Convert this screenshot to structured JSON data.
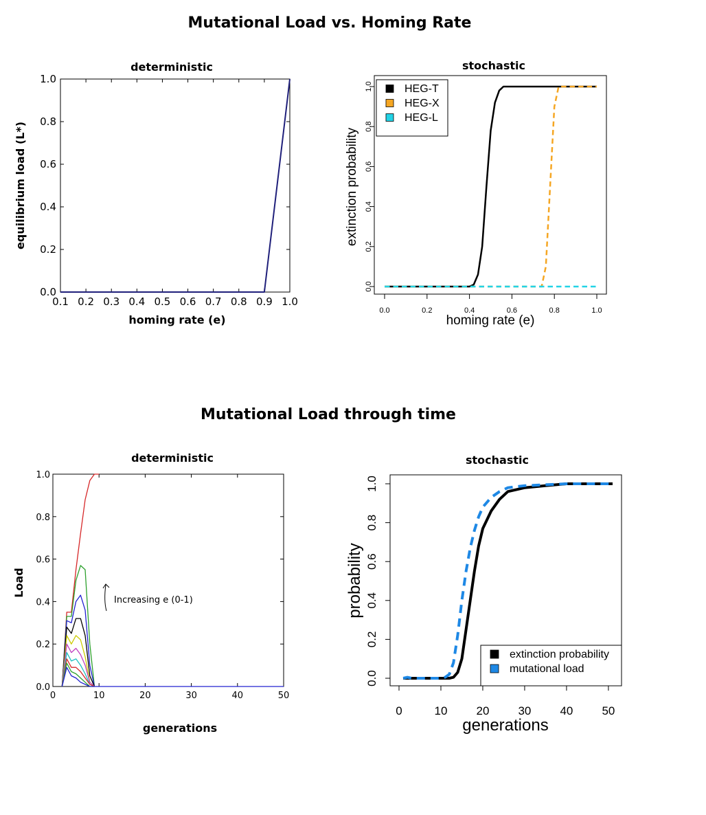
{
  "titles": {
    "top": "Mutational Load vs. Homing Rate",
    "bottom": "Mutational Load through time"
  },
  "chart_data": [
    {
      "id": "det-homing",
      "type": "line",
      "title": "deterministic",
      "xlabel": "homing rate (e)",
      "ylabel": "equilibrium load (L*)",
      "xlim": [
        0.1,
        1.0
      ],
      "ylim": [
        0.0,
        1.0
      ],
      "xticks": [
        "0.1",
        "0.2",
        "0.3",
        "0.4",
        "0.5",
        "0.6",
        "0.7",
        "0.8",
        "0.9",
        "1.0"
      ],
      "yticks": [
        "0.0",
        "0.2",
        "0.4",
        "0.6",
        "0.8",
        "1.0"
      ],
      "series": [
        {
          "color": "#1f1f7a",
          "x": [
            0.1,
            0.9,
            1.0
          ],
          "y": [
            0.0,
            0.0,
            1.0
          ]
        }
      ]
    },
    {
      "id": "sto-homing",
      "type": "line",
      "title": "stochastic",
      "xlabel": "homing rate (e)",
      "ylabel": "extinction probability",
      "xlim": [
        0.0,
        1.0
      ],
      "ylim": [
        0.0,
        1.0
      ],
      "xticks": [
        "0.0",
        "0.2",
        "0.4",
        "0.6",
        "0.8",
        "1.0"
      ],
      "yticks": [
        "0.0",
        "0.2",
        "0.4",
        "0.6",
        "0.8",
        "1.0"
      ],
      "legend": "top-left",
      "series": [
        {
          "name": "HEG-T",
          "color": "#000000",
          "dash": false,
          "x": [
            0.0,
            0.3,
            0.4,
            0.42,
            0.44,
            0.46,
            0.48,
            0.5,
            0.52,
            0.54,
            0.56,
            0.58,
            0.6,
            0.7,
            1.0
          ],
          "y": [
            0.0,
            0.0,
            0.0,
            0.01,
            0.06,
            0.2,
            0.5,
            0.78,
            0.92,
            0.98,
            1.0,
            1.0,
            1.0,
            1.0,
            1.0
          ]
        },
        {
          "name": "HEG-X",
          "color": "#f5a623",
          "dash": true,
          "x": [
            0.0,
            0.74,
            0.76,
            0.78,
            0.8,
            0.82,
            1.0
          ],
          "y": [
            0.0,
            0.0,
            0.1,
            0.5,
            0.9,
            1.0,
            1.0
          ]
        },
        {
          "name": "HEG-L",
          "color": "#22d3e6",
          "dash": true,
          "x": [
            0.0,
            1.0
          ],
          "y": [
            0.0,
            0.0
          ]
        }
      ]
    },
    {
      "id": "det-time",
      "type": "line",
      "title": "deterministic",
      "xlabel": "generations",
      "ylabel": "Load",
      "xlim": [
        0,
        50
      ],
      "ylim": [
        0.0,
        1.0
      ],
      "xticks": [
        "0",
        "10",
        "20",
        "30",
        "40",
        "50"
      ],
      "yticks": [
        "0.0",
        "0.2",
        "0.4",
        "0.6",
        "0.8",
        "1.0"
      ],
      "annotation": "Increasing e (0-1)",
      "series": [
        {
          "color": "#d62728",
          "x": [
            2,
            3,
            4,
            5,
            6,
            7,
            8,
            9,
            10
          ],
          "y": [
            0,
            0.35,
            0.35,
            0.55,
            0.72,
            0.88,
            0.97,
            1.0,
            1.0
          ]
        },
        {
          "color": "#2ca02c",
          "x": [
            2,
            3,
            4,
            5,
            6,
            7,
            8,
            9
          ],
          "y": [
            0,
            0.33,
            0.33,
            0.5,
            0.57,
            0.55,
            0.2,
            0
          ]
        },
        {
          "color": "#2020d0",
          "x": [
            2,
            3,
            4,
            5,
            6,
            7,
            8,
            9
          ],
          "y": [
            0,
            0.31,
            0.3,
            0.4,
            0.43,
            0.36,
            0.1,
            0
          ]
        },
        {
          "color": "#000000",
          "x": [
            2,
            3,
            4,
            5,
            6,
            7,
            8,
            9
          ],
          "y": [
            0,
            0.28,
            0.25,
            0.32,
            0.32,
            0.24,
            0.05,
            0
          ]
        },
        {
          "color": "#cccc00",
          "x": [
            2,
            3,
            4,
            5,
            6,
            7,
            8,
            9
          ],
          "y": [
            0,
            0.24,
            0.2,
            0.24,
            0.22,
            0.14,
            0.02,
            0
          ]
        },
        {
          "color": "#c040c0",
          "x": [
            2,
            3,
            4,
            5,
            6,
            7,
            8,
            9
          ],
          "y": [
            0,
            0.2,
            0.16,
            0.18,
            0.15,
            0.1,
            0.02,
            0
          ]
        },
        {
          "color": "#20c0c0",
          "x": [
            2,
            3,
            4,
            5,
            6,
            7,
            8,
            9
          ],
          "y": [
            0,
            0.16,
            0.12,
            0.13,
            0.1,
            0.06,
            0.01,
            0
          ]
        },
        {
          "color": "#d62728",
          "x": [
            2,
            3,
            4,
            5,
            6,
            7,
            8,
            9
          ],
          "y": [
            0,
            0.13,
            0.09,
            0.09,
            0.07,
            0.04,
            0.01,
            0
          ]
        },
        {
          "color": "#2ca02c",
          "x": [
            2,
            3,
            4,
            5,
            6,
            7,
            8,
            9
          ],
          "y": [
            0,
            0.11,
            0.07,
            0.06,
            0.04,
            0.02,
            0.0,
            0
          ]
        },
        {
          "color": "#2020d0",
          "x": [
            2,
            3,
            4,
            5,
            6,
            7,
            8,
            9,
            10,
            50
          ],
          "y": [
            0,
            0.09,
            0.05,
            0.04,
            0.02,
            0.01,
            0.0,
            0,
            0,
            0
          ]
        }
      ]
    },
    {
      "id": "sto-time",
      "type": "line",
      "title": "stochastic",
      "xlabel": "generations",
      "ylabel": "probability",
      "xlim": [
        0,
        51
      ],
      "ylim": [
        0.0,
        1.0
      ],
      "xticks": [
        "0",
        "10",
        "20",
        "30",
        "40",
        "50"
      ],
      "yticks": [
        "0.0",
        "0.2",
        "0.4",
        "0.6",
        "0.8",
        "1.0"
      ],
      "legend": "bottom-right",
      "series": [
        {
          "name": "extinction probability",
          "color": "#000000",
          "dash": false,
          "x": [
            1,
            5,
            10,
            12,
            13,
            14,
            15,
            16,
            17,
            18,
            19,
            20,
            22,
            24,
            26,
            30,
            35,
            40,
            45,
            51
          ],
          "y": [
            0,
            0,
            0,
            0,
            0.005,
            0.03,
            0.1,
            0.25,
            0.4,
            0.55,
            0.68,
            0.77,
            0.86,
            0.92,
            0.96,
            0.98,
            0.99,
            1.0,
            1.0,
            1.0
          ]
        },
        {
          "name": "mutational load",
          "color": "#1e88e5",
          "dash": true,
          "x": [
            1,
            2,
            3,
            5,
            10,
            11,
            12,
            13,
            14,
            15,
            16,
            17,
            18,
            19,
            20,
            22,
            24,
            26,
            30,
            35,
            40,
            45,
            51
          ],
          "y": [
            0,
            0.005,
            0,
            0,
            0,
            0.005,
            0.02,
            0.08,
            0.22,
            0.4,
            0.55,
            0.67,
            0.76,
            0.83,
            0.88,
            0.93,
            0.96,
            0.98,
            0.99,
            0.995,
            1.0,
            1.0,
            1.0
          ]
        }
      ]
    }
  ]
}
